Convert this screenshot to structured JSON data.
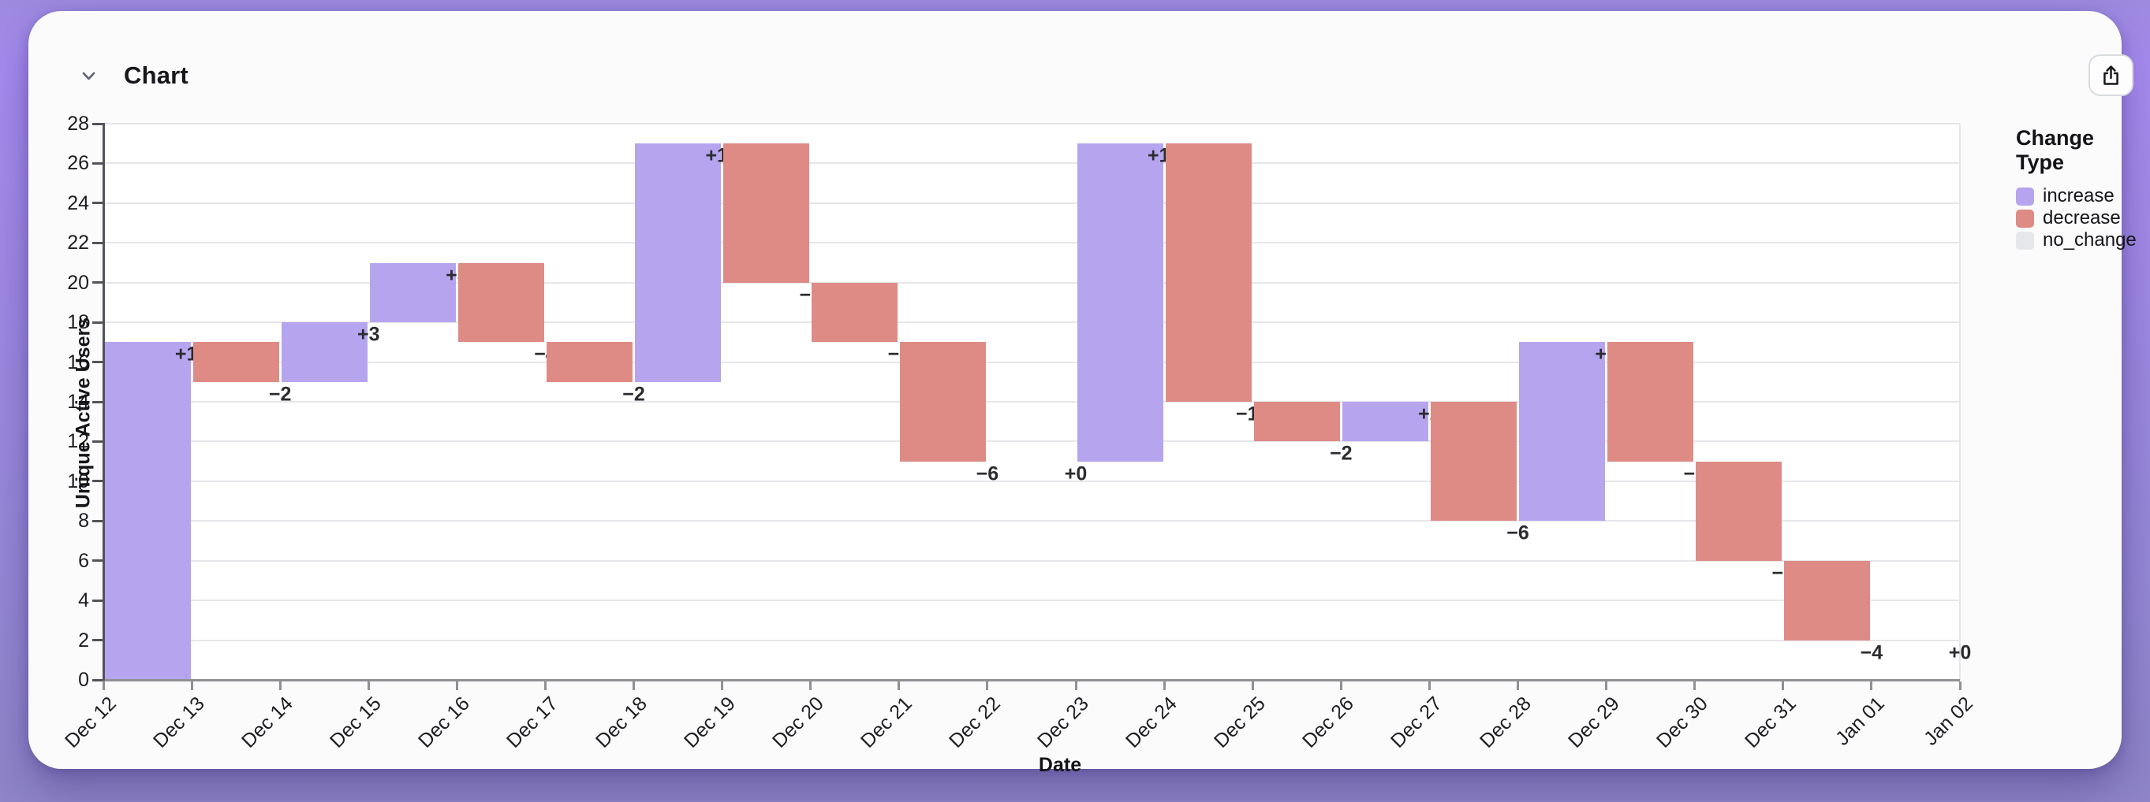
{
  "header": {
    "title": "Chart"
  },
  "toolbar": {
    "collapse_icon": "chevron-down-icon",
    "share_icon": "share-export-icon"
  },
  "legend": {
    "title": "Change Type",
    "items": [
      {
        "label": "increase",
        "color": "#b6a5ee"
      },
      {
        "label": "decrease",
        "color": "#df8b85"
      },
      {
        "label": "no_change",
        "color": "#e5e7eb"
      }
    ]
  },
  "chart_data": {
    "type": "bar",
    "subtype": "waterfall",
    "title": "Chart",
    "xlabel": "Date",
    "ylabel": "Unique Active Users",
    "ylim": [
      0,
      28
    ],
    "grid": true,
    "legend_position": "right",
    "y_ticks": [
      0,
      2,
      4,
      6,
      8,
      10,
      12,
      14,
      16,
      18,
      20,
      22,
      24,
      26,
      28
    ],
    "x_ticks": [
      "Dec 12",
      "Dec 13",
      "Dec 14",
      "Dec 15",
      "Dec 16",
      "Dec 17",
      "Dec 18",
      "Dec 19",
      "Dec 20",
      "Dec 21",
      "Dec 22",
      "Dec 23",
      "Dec 24",
      "Dec 25",
      "Dec 26",
      "Dec 27",
      "Dec 28",
      "Dec 29",
      "Dec 30",
      "Dec 31",
      "Jan 01",
      "Jan 02"
    ],
    "categories": [
      "Dec 12",
      "Dec 13",
      "Dec 14",
      "Dec 15",
      "Dec 16",
      "Dec 17",
      "Dec 18",
      "Dec 19",
      "Dec 20",
      "Dec 21",
      "Dec 22",
      "Dec 23",
      "Dec 24",
      "Dec 25",
      "Dec 26",
      "Dec 27",
      "Dec 28",
      "Dec 29",
      "Dec 30",
      "Dec 31",
      "Jan 01"
    ],
    "changes": [
      17,
      -2,
      3,
      3,
      -4,
      -2,
      12,
      -7,
      -3,
      -6,
      0,
      16,
      -13,
      -2,
      2,
      -6,
      9,
      -6,
      -5,
      -4,
      0
    ],
    "change_labels": [
      "+17",
      "−2",
      "+3",
      "+3",
      "−4",
      "−2",
      "+12",
      "−7",
      "−3",
      "−6",
      "+0",
      "+16",
      "−13",
      "−2",
      "+2",
      "−6",
      "+9",
      "−6",
      "−5",
      "−4",
      "+0"
    ],
    "change_types": [
      "increase",
      "decrease",
      "increase",
      "increase",
      "decrease",
      "decrease",
      "increase",
      "decrease",
      "decrease",
      "decrease",
      "no_change",
      "increase",
      "decrease",
      "decrease",
      "increase",
      "decrease",
      "increase",
      "decrease",
      "decrease",
      "decrease",
      "no_change"
    ],
    "cumulative": [
      17,
      15,
      18,
      21,
      17,
      15,
      27,
      20,
      17,
      11,
      11,
      27,
      14,
      12,
      14,
      8,
      17,
      11,
      6,
      2,
      2
    ],
    "colors": {
      "increase": "#b6a5ee",
      "decrease": "#df8b85",
      "no_change": "#e5e7eb"
    },
    "value_label_color": "#2b2b30"
  }
}
